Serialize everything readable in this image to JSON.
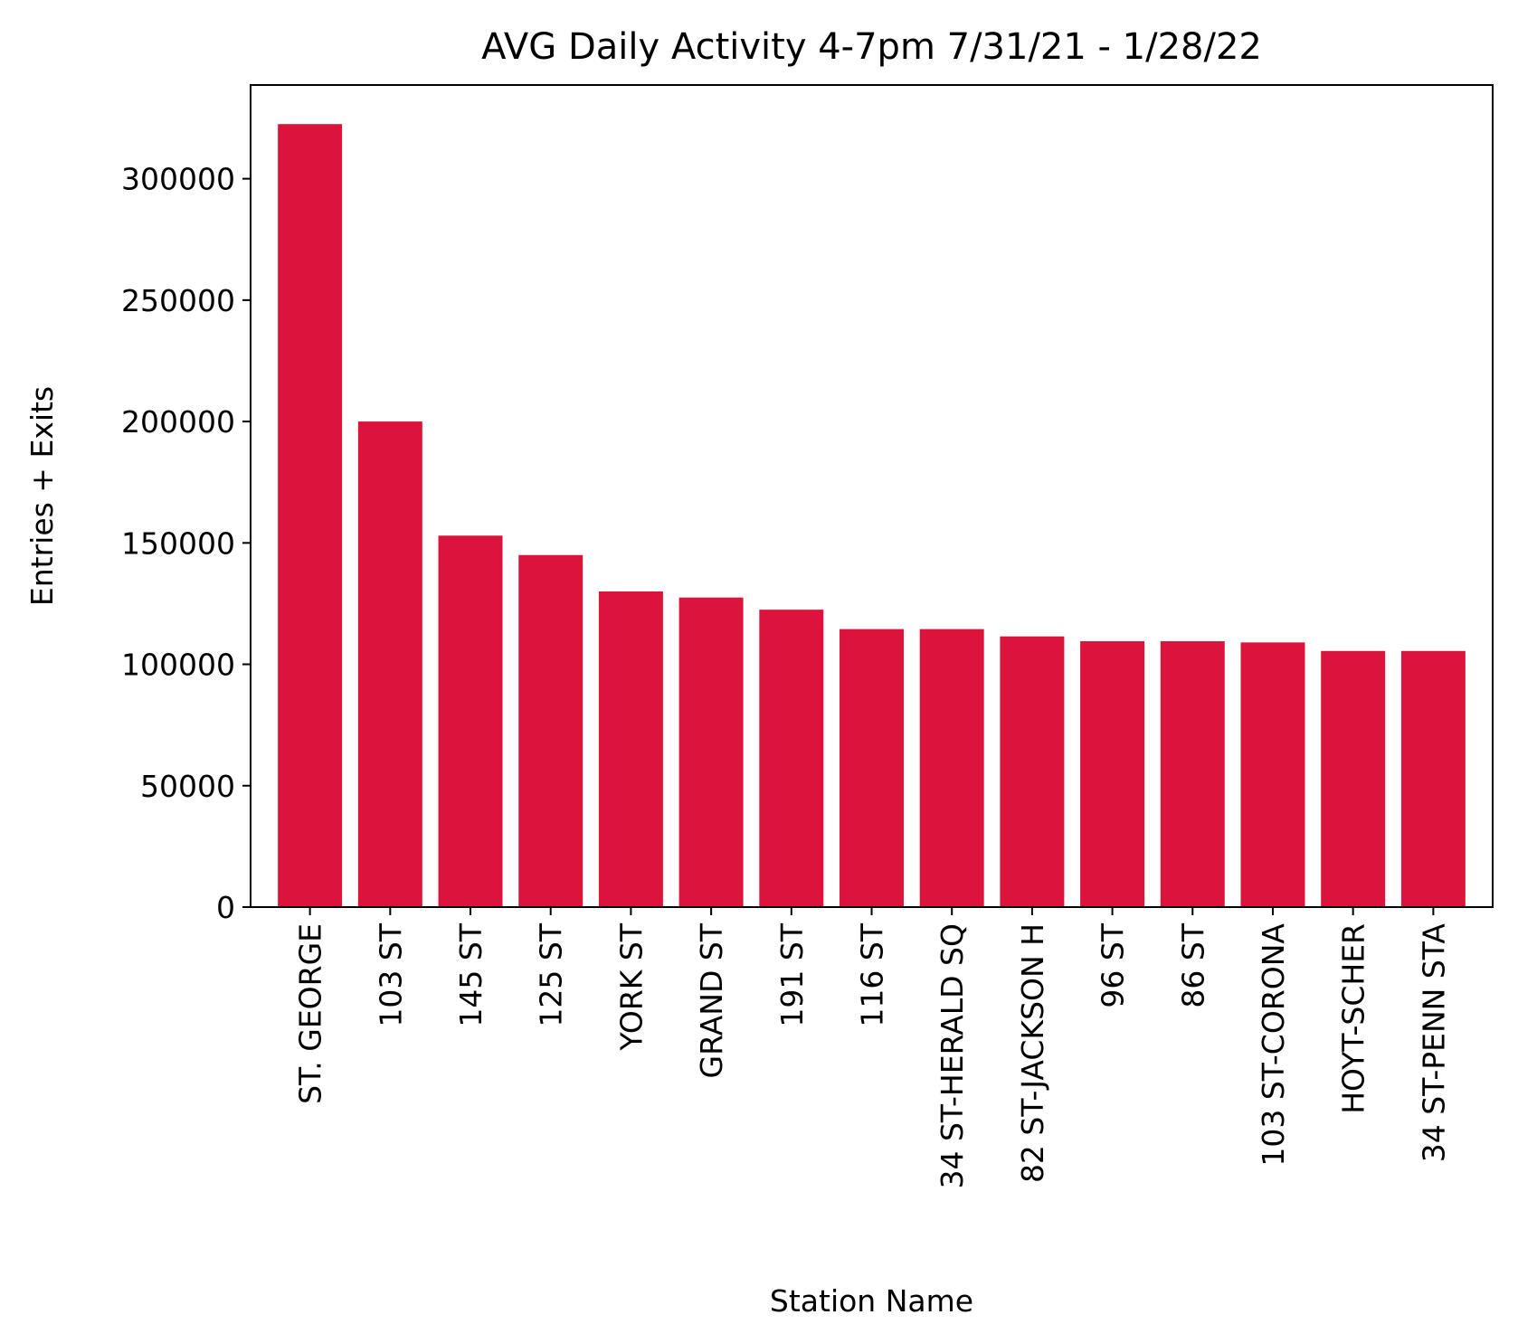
{
  "chart_data": {
    "type": "bar",
    "title": "AVG Daily Activity 4-7pm 7/31/21 - 1/28/22",
    "xlabel": "Station Name",
    "ylabel": "Entries + Exits",
    "categories": [
      "ST. GEORGE",
      "103 ST",
      "145 ST",
      "125 ST",
      "YORK ST",
      "GRAND ST",
      "191 ST",
      "116 ST",
      "34 ST-HERALD SQ",
      "82 ST-JACKSON H",
      "96 ST",
      "86 ST",
      "103 ST-CORONA",
      "HOYT-SCHER",
      "34 ST-PENN STA"
    ],
    "values": [
      322500,
      200000,
      153000,
      145000,
      130000,
      127500,
      122500,
      114500,
      114500,
      111500,
      109500,
      109500,
      109000,
      105500,
      105500
    ],
    "yticks": [
      0,
      50000,
      100000,
      150000,
      200000,
      250000,
      300000
    ],
    "ylim": [
      0,
      338600
    ],
    "grid": false,
    "bar_color": "#DC143C",
    "axis_color": "#000000",
    "background_color": "#ffffff"
  }
}
